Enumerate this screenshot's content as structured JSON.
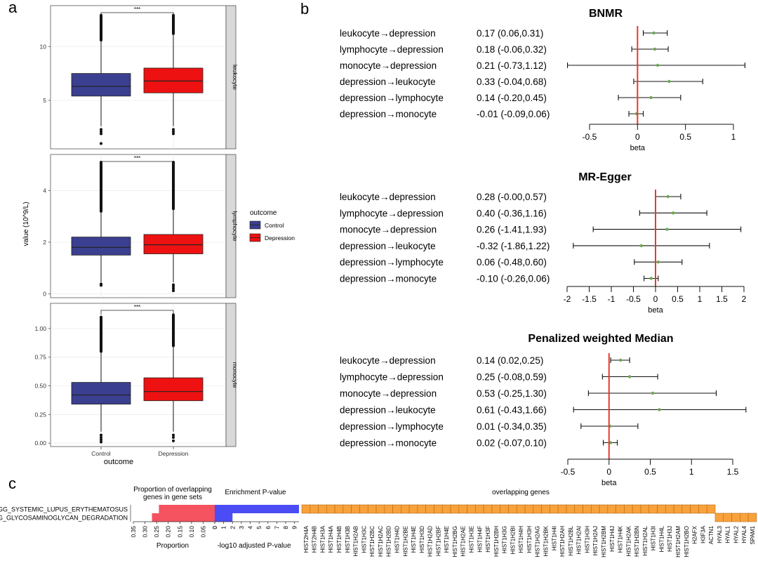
{
  "panel_labels": {
    "a": "a",
    "b": "b",
    "c": "c"
  },
  "colors": {
    "control": "#3b3f8f",
    "depression": "#ee1111",
    "forest_line": "#e8392b",
    "forest_point": "#6aa84f",
    "prop_bar": "#f4535f",
    "pval_bar": "#4b4cf5",
    "gene_cell": "#f9a23c",
    "strip": "#d9d9d9"
  },
  "chart_data": [
    {
      "id": "panel-a",
      "type": "boxplot",
      "xlabel": "outcome",
      "ylabel": "value (10^9/L)",
      "categories": [
        "Control",
        "Depression"
      ],
      "legend": {
        "title": "outcome",
        "entries": [
          "Control",
          "Depression"
        ],
        "position": "right"
      },
      "facets": [
        {
          "name": "leukocyte",
          "signif": "***",
          "ylim": [
            0.5,
            13.8
          ],
          "yticks": [
            5,
            10
          ],
          "boxes": [
            {
              "group": "Control",
              "q1": 5.4,
              "median": 6.3,
              "q3": 7.5,
              "whisker_low": 2.6,
              "whisker_high": 10.6,
              "outlier_top": 12.9,
              "outliers_low": [
                2.3,
                2.1,
                1.9,
                1.0
              ]
            },
            {
              "group": "Depression",
              "q1": 5.7,
              "median": 6.8,
              "q3": 8.0,
              "whisker_low": 2.6,
              "whisker_high": 11.2,
              "outlier_top": 12.9,
              "outliers_low": [
                2.3,
                2.1,
                1.9
              ]
            }
          ]
        },
        {
          "name": "lymphocyte",
          "signif": "***",
          "ylim": [
            -0.15,
            5.4
          ],
          "yticks": [
            0,
            2,
            4
          ],
          "boxes": [
            {
              "group": "Control",
              "q1": 1.5,
              "median": 1.8,
              "q3": 2.2,
              "whisker_low": 0.45,
              "whisker_high": 3.2,
              "outlier_top": 5.1,
              "outliers_low": [
                0.38,
                0.33
              ]
            },
            {
              "group": "Depression",
              "q1": 1.55,
              "median": 1.9,
              "q3": 2.3,
              "whisker_low": 0.45,
              "whisker_high": 3.3,
              "outlier_top": 5.1,
              "outliers_low": [
                0.35,
                0.28,
                0.2,
                0.12
              ]
            }
          ]
        },
        {
          "name": "monocyte",
          "signif": "***",
          "ylim": [
            -0.03,
            1.22
          ],
          "yticks": [
            0.0,
            0.25,
            0.5,
            0.75,
            1.0
          ],
          "ytick_labels": [
            "0.00",
            "0.25",
            "0.50",
            "0.75",
            "1.00"
          ],
          "boxes": [
            {
              "group": "Control",
              "q1": 0.34,
              "median": 0.42,
              "q3": 0.53,
              "whisker_low": 0.1,
              "whisker_high": 0.8,
              "outlier_top": 1.1,
              "outliers_low": [
                0.07,
                0.05,
                0.03,
                0.01
              ]
            },
            {
              "group": "Depression",
              "q1": 0.37,
              "median": 0.45,
              "q3": 0.57,
              "whisker_low": 0.1,
              "whisker_high": 0.85,
              "outlier_top": 1.12,
              "outliers_low": [
                0.07,
                0.05,
                0.02
              ]
            }
          ]
        }
      ]
    },
    {
      "id": "panel-b",
      "type": "forest",
      "xlabel": "beta",
      "subplots": [
        {
          "title": "BNMR",
          "xlim": [
            -0.75,
            1.15
          ],
          "xticks": [
            -0.5,
            0,
            0.5,
            1
          ],
          "xtick_labels": [
            "-0.5",
            "0",
            "0.5",
            "1"
          ],
          "rows": [
            {
              "label": "leukocyte→depression",
              "text": "0.17 (0.06,0.31)",
              "beta": 0.17,
              "lo": 0.06,
              "hi": 0.31
            },
            {
              "label": "lymphocyte→depression",
              "text": "0.18 (-0.06,0.32)",
              "beta": 0.18,
              "lo": -0.06,
              "hi": 0.32
            },
            {
              "label": "monocyte→depression",
              "text": "0.21 (-0.73,1.12)",
              "beta": 0.21,
              "lo": -0.73,
              "hi": 1.12
            },
            {
              "label": "depression→leukocyte",
              "text": "0.33 (-0.04,0.68)",
              "beta": 0.33,
              "lo": -0.04,
              "hi": 0.68
            },
            {
              "label": "depression→lymphocyte",
              "text": "0.14 (-0.20,0.45)",
              "beta": 0.14,
              "lo": -0.2,
              "hi": 0.45
            },
            {
              "label": "depression→monocyte",
              "text": "-0.01 (-0.09,0.06)",
              "beta": -0.01,
              "lo": -0.09,
              "hi": 0.06
            }
          ]
        },
        {
          "title": "MR-Egger",
          "xlim": [
            -2,
            2
          ],
          "xticks": [
            -2,
            -1.5,
            -1,
            -0.5,
            0,
            0.5,
            1,
            1.5,
            2
          ],
          "xtick_labels": [
            "-2",
            "-1.5",
            "-1",
            "-0.5",
            "0",
            "0.5",
            "1",
            "1.5",
            "2"
          ],
          "rows": [
            {
              "label": "leukocyte→depression",
              "text": "0.28 (-0.00,0.57)",
              "beta": 0.28,
              "lo": 0.0,
              "hi": 0.57
            },
            {
              "label": "lymphocyte→depression",
              "text": "0.40 (-0.36,1.16)",
              "beta": 0.4,
              "lo": -0.36,
              "hi": 1.16
            },
            {
              "label": "monocyte→depression",
              "text": "0.26 (-1.41,1.93)",
              "beta": 0.26,
              "lo": -1.41,
              "hi": 1.93
            },
            {
              "label": "depression→leukocyte",
              "text": "-0.32 (-1.86,1.22)",
              "beta": -0.32,
              "lo": -1.86,
              "hi": 1.22
            },
            {
              "label": "depression→lymphocyte",
              "text": "0.06 (-0.48,0.60)",
              "beta": 0.06,
              "lo": -0.48,
              "hi": 0.6
            },
            {
              "label": "depression→monocyte",
              "text": "-0.10 (-0.26,0.06)",
              "beta": -0.1,
              "lo": -0.26,
              "hi": 0.06
            }
          ]
        },
        {
          "title": "Penalized weighted Median",
          "xlim": [
            -0.5,
            1.65
          ],
          "xticks": [
            -0.5,
            0,
            0.5,
            1,
            1.5
          ],
          "xtick_labels": [
            "-0.5",
            "0",
            "0.5",
            "1",
            "1.5"
          ],
          "rows": [
            {
              "label": "leukocyte→depression",
              "text": "0.14 (0.02,0.25)",
              "beta": 0.14,
              "lo": 0.02,
              "hi": 0.25
            },
            {
              "label": "lymphocyte→depression",
              "text": "0.25 (-0.08,0.59)",
              "beta": 0.25,
              "lo": -0.08,
              "hi": 0.59
            },
            {
              "label": "monocyte→depression",
              "text": "0.53 (-0.25,1.30)",
              "beta": 0.53,
              "lo": -0.25,
              "hi": 1.3
            },
            {
              "label": "depression→leukocyte",
              "text": "0.61 (-0.43,1.66)",
              "beta": 0.61,
              "lo": -0.43,
              "hi": 1.66
            },
            {
              "label": "depression→lymphocyte",
              "text": "0.01 (-0.34,0.35)",
              "beta": 0.01,
              "lo": -0.34,
              "hi": 0.35
            },
            {
              "label": "depression→monocyte",
              "text": "0.02 (-0.07,0.10)",
              "beta": 0.02,
              "lo": -0.07,
              "hi": 0.1
            }
          ]
        }
      ]
    },
    {
      "id": "panel-c",
      "type": "enrichment-table",
      "pathways": [
        "KEGG_SYSTEMIC_LUPUS_ERYTHEMATOSUS",
        "KEGG_GLYCOSAMINOGLYCAN_DEGRADATION"
      ],
      "pathway_display": [
        "EGG_SYSTEMIC_LUPUS_ERYTHEMATOSUS",
        "EGG_GLYCOSAMINOGLYCAN_DEGRADATION"
      ],
      "proportion": {
        "title": "Proportion of overlapping genes in gene sets",
        "title_lines": [
          "Proportion of overlapping",
          "genes in gene sets"
        ],
        "xlabel": "Proportion",
        "xlim": [
          0,
          0.35
        ],
        "xticks": [
          0.35,
          0.3,
          0.25,
          0.2,
          0.15,
          0.1,
          0.05,
          0
        ],
        "xtick_labels": [
          "0.35",
          "0.30",
          "0.25",
          "0.20",
          "0.15",
          "0.10",
          "0.05",
          "0"
        ],
        "values": [
          0.24,
          0.27
        ]
      },
      "pvalue": {
        "title": "Enrichment P-value",
        "xlabel": "-log10 adjusted P-value",
        "xlim": [
          0,
          9.5
        ],
        "xticks": [
          0,
          1,
          2,
          3,
          4,
          5,
          6,
          7,
          8,
          9
        ],
        "values": [
          9.5,
          2.0
        ]
      },
      "genes_title": "overlapping genes",
      "genes": [
        "HIST2H4A",
        "HIST2H4B",
        "HIST1H3A",
        "HIST1H4A",
        "HIST1H4B",
        "HIST1H3B",
        "HIST1H2AB",
        "HIST1H3C",
        "HIST1H2BC",
        "HIST1H2AC",
        "HIST1H2BD",
        "HIST1H4D",
        "HIST1H2BE",
        "HIST1H4E",
        "HIST1H3D",
        "HIST1H2AD",
        "HIST1H2BF",
        "HIST1H4E",
        "HIST1H2BG",
        "HIST1H2AE",
        "HIST1H3E",
        "HIST1H4F",
        "HIST1H3F",
        "HIST1H2BH",
        "HIST1H3G",
        "HIST1H2BI",
        "HIST1H4H",
        "HIST1H3H",
        "HIST1H2AG",
        "HIST1H2BK",
        "HIST1H4I",
        "HIST1H2AH",
        "HIST1H2BL",
        "HIST1H2AI",
        "HIST1H3H",
        "HIST1H2AJ",
        "HIST1H2BM",
        "HIST1H4J",
        "HIST1H4K",
        "HIST1H2AK",
        "HIST1H2BN",
        "HIST1H2AL",
        "HIST1H3I",
        "HIST1H4L",
        "HIST1H3J",
        "HIST1H2AM",
        "HIST1H2BO",
        "H2AFX",
        "H3F3A",
        "ACTN1",
        "HYAL3",
        "HYAL1",
        "HYAL2",
        "HYAL4",
        "SPAM1"
      ],
      "gene_rows": [
        [
          "HIST2H4A",
          "HIST2H4B",
          "HIST1H3A",
          "HIST1H4A",
          "HIST1H4B",
          "HIST1H3B",
          "HIST1H2AB",
          "HIST1H3C",
          "HIST1H2BC",
          "HIST1H2AC",
          "HIST1H2BD",
          "HIST1H4D",
          "HIST1H2BE",
          "HIST1H4E",
          "HIST1H3D",
          "HIST1H2AD",
          "HIST1H2BF",
          "HIST1H4E",
          "HIST1H2BG",
          "HIST1H2AE",
          "HIST1H3E",
          "HIST1H4F",
          "HIST1H3F",
          "HIST1H2BH",
          "HIST1H3G",
          "HIST1H2BI",
          "HIST1H4H",
          "HIST1H3H",
          "HIST1H2AG",
          "HIST1H2BK",
          "HIST1H4I",
          "HIST1H2AH",
          "HIST1H2BL",
          "HIST1H2AI",
          "HIST1H3H",
          "HIST1H2AJ",
          "HIST1H2BM",
          "HIST1H4J",
          "HIST1H4K",
          "HIST1H2AK",
          "HIST1H2BN",
          "HIST1H2AL",
          "HIST1H3I",
          "HIST1H4L",
          "HIST1H3J",
          "HIST1H2AM",
          "HIST1H2BO",
          "H2AFX",
          "H3F3A",
          "ACTN1"
        ],
        [
          "HYAL3",
          "HYAL1",
          "HYAL2",
          "HYAL4",
          "SPAM1"
        ]
      ]
    }
  ]
}
